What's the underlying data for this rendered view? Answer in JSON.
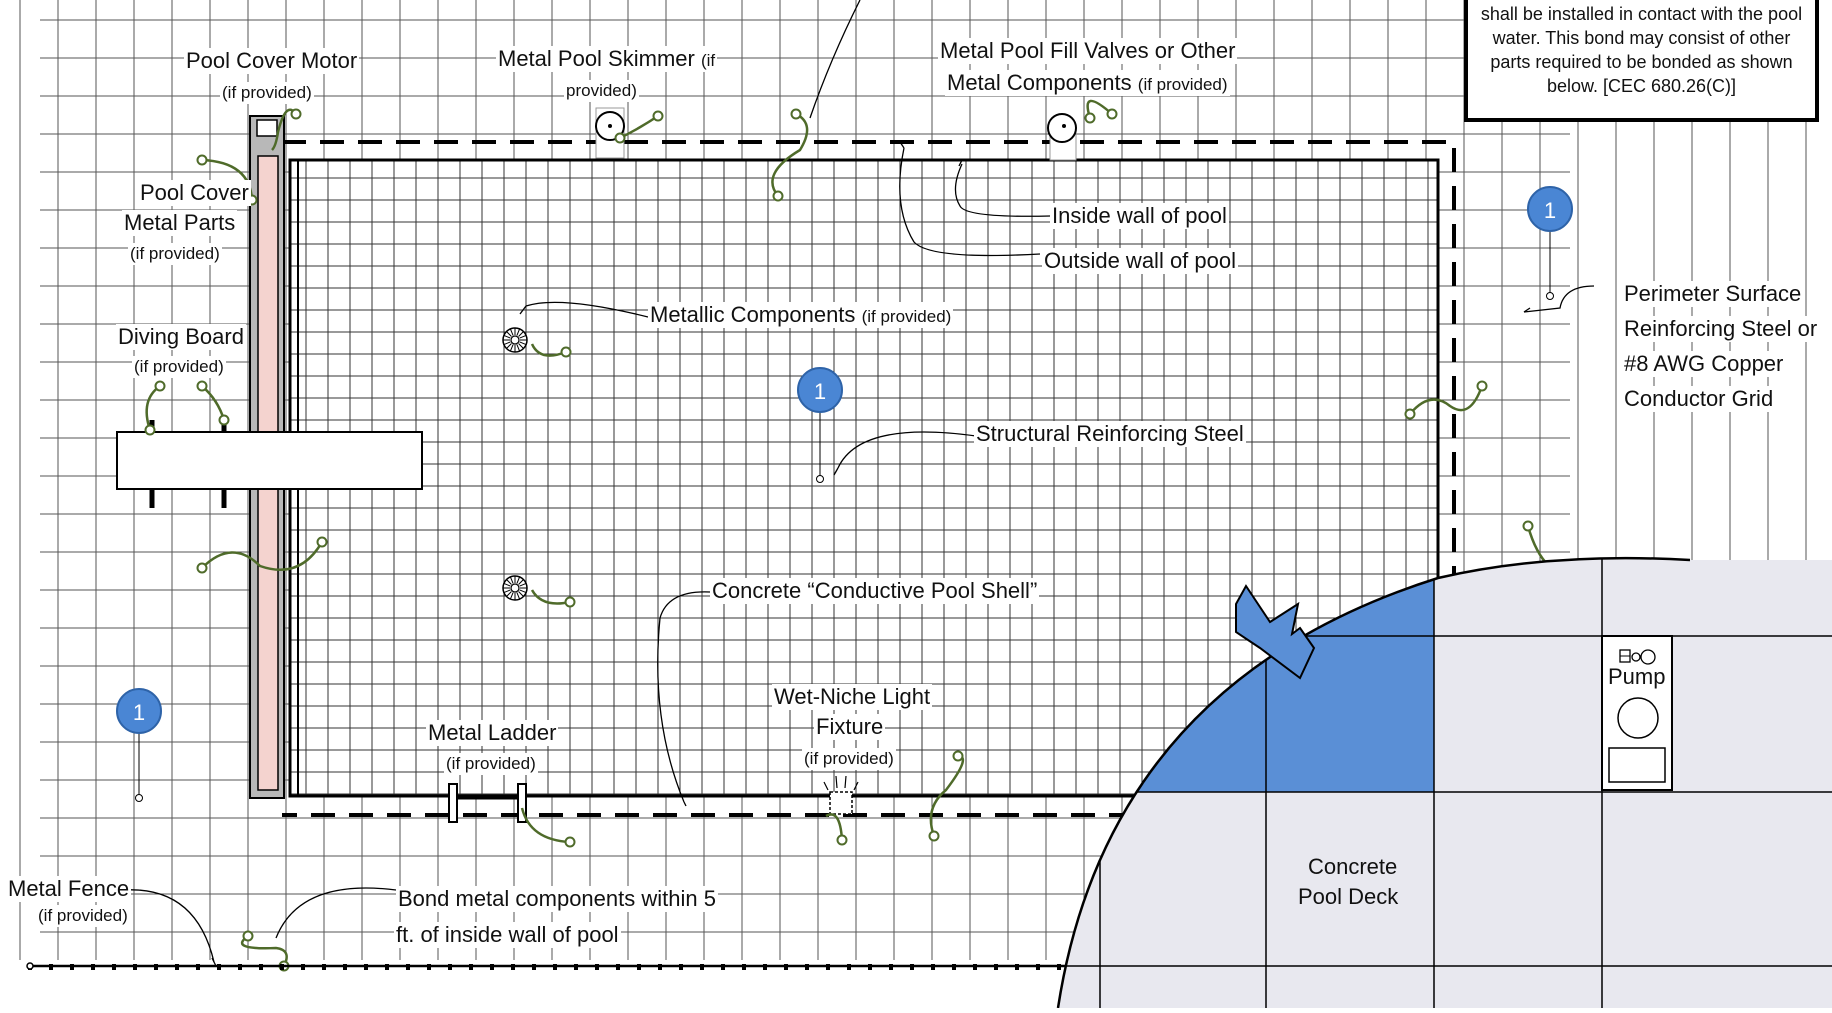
{
  "labels": {
    "pool_cover_motor": {
      "title": "Pool Cover Motor",
      "note": "(if provided)"
    },
    "metal_pool_skimmer": {
      "title": "Metal Pool Skimmer",
      "note_a": "(if",
      "note_b": "provided)"
    },
    "metal_fill_valves": {
      "line1": "Metal Pool Fill Valves or Other",
      "line2": "Metal Components",
      "note": "(if provided)"
    },
    "pool_cover_metal_parts": {
      "line1": "Pool Cover",
      "line2": "Metal Parts",
      "note": "(if provided)"
    },
    "diving_board": {
      "title": "Diving Board",
      "note": "(if provided)"
    },
    "inside_wall": "Inside wall of pool",
    "outside_wall": "Outside wall of pool",
    "metallic_components": {
      "title": "Metallic Components",
      "note": "(if provided)"
    },
    "perimeter_surface": {
      "line1": "Perimeter Surface",
      "line2": "Reinforcing Steel or",
      "line3": "#8 AWG Copper",
      "line4": "Conductor Grid"
    },
    "structural_steel": "Structural Reinforcing Steel",
    "conductive_shell": "Concrete “Conductive Pool Shell”",
    "wet_niche_light": {
      "line1": "Wet-Niche Light",
      "line2": "Fixture",
      "note": "(if provided)"
    },
    "metal_ladder": {
      "title": "Metal Ladder",
      "note": "(if provided)"
    },
    "metal_fence": {
      "title": "Metal Fence",
      "note": "(if provided)"
    },
    "bond_within": {
      "line1": "Bond metal components within 5",
      "line2": "ft. of inside wall of pool"
    },
    "pump": "Pump",
    "pool_deck": {
      "line1": "Concrete",
      "line2": "Pool Deck"
    }
  },
  "callout": {
    "line1": "shall be installed in contact with the pool",
    "line2": "water. This bond may consist of other",
    "line3": "parts required to be bonded as shown",
    "line4": "below. [CEC 680.26(C)]"
  },
  "badges": {
    "b1": "1",
    "b2": "1",
    "b3": "1"
  },
  "colors": {
    "grid": "#444444",
    "bond_wire": "#4f6b2a",
    "badge": "#4a86d4",
    "deck_fill": "#e8e8ef",
    "deck_highlight": "#5a8fd6",
    "cover_fill": "#f4d3cf"
  }
}
